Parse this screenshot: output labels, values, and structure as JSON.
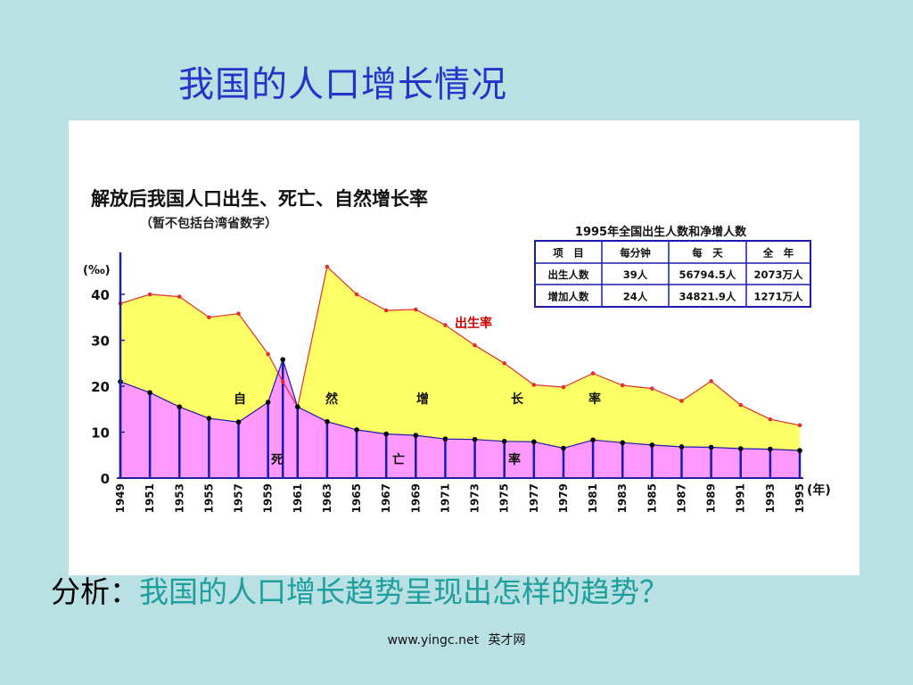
{
  "slide": {
    "title": "我国的人口增长情况",
    "question_prefix": "分析：",
    "question_body": "我国的人口增长趋势呈现出怎样的趋势？",
    "footer_site": "www.yingc.net",
    "footer_brand": "英才网"
  },
  "colors": {
    "background": "#b9e0e2",
    "title_blue": "#2633c8",
    "question_teal": "#1f9e9e",
    "birth_fill": "#ffff66",
    "birth_line": "#e03030",
    "death_fill": "#ff99ff",
    "death_line": "#1a1ab0",
    "axis": "#2020a0",
    "label_red": "#cc0000"
  },
  "chart_data": {
    "type": "area",
    "title": "解放后我国人口出生、死亡、自然增长率",
    "subtitle": "（暂不包括台湾省数字）",
    "ylabel": "(‰)",
    "xlabel": "(年)",
    "ylim": [
      0,
      47
    ],
    "yticks": [
      "0",
      "10",
      "20",
      "30",
      "40"
    ],
    "x": [
      1949,
      1951,
      1953,
      1955,
      1957,
      1959,
      1960,
      1961,
      1963,
      1965,
      1967,
      1969,
      1971,
      1973,
      1975,
      1977,
      1979,
      1981,
      1983,
      1985,
      1987,
      1989,
      1991,
      1993,
      1995
    ],
    "xtick_labels": [
      "1949",
      "1951",
      "1953",
      "1955",
      "1957",
      "1959",
      "1961",
      "1963",
      "1965",
      "1967",
      "1969",
      "1971",
      "1973",
      "1975",
      "1977",
      "1979",
      "1981",
      "1983",
      "1985",
      "1987",
      "1989",
      "1991",
      "1993",
      "1995"
    ],
    "series": [
      {
        "name": "出生率",
        "values": [
          38,
          40,
          39.5,
          35,
          35.8,
          27,
          21,
          15.5,
          46,
          40,
          36.5,
          36.7,
          33.3,
          28.9,
          25,
          20.3,
          19.8,
          22.8,
          20.2,
          19.5,
          16.8,
          21.1,
          15.9,
          12.8,
          11.5
        ]
      },
      {
        "name": "死亡率",
        "values": [
          21,
          18.6,
          15.5,
          13,
          12.2,
          16.5,
          25.8,
          15.5,
          12.3,
          10.5,
          9.6,
          9.3,
          8.5,
          8.4,
          8,
          7.9,
          6.5,
          8.3,
          7.7,
          7.2,
          6.8,
          6.7,
          6.4,
          6.3,
          6
        ]
      }
    ],
    "area_labels": {
      "natural": [
        "自",
        "然",
        "增",
        "长",
        "率"
      ],
      "death": [
        "死",
        "亡",
        "率"
      ]
    },
    "table": {
      "title": "1995年全国出生人数和净增人数",
      "headers": [
        "项　目",
        "每分钟",
        "每　天",
        "全　年"
      ],
      "rows": [
        [
          "出生人数",
          "39人",
          "56794.5人",
          "2073万人"
        ],
        [
          "增加人数",
          "24人",
          "34821.9人",
          "1271万人"
        ]
      ]
    }
  }
}
